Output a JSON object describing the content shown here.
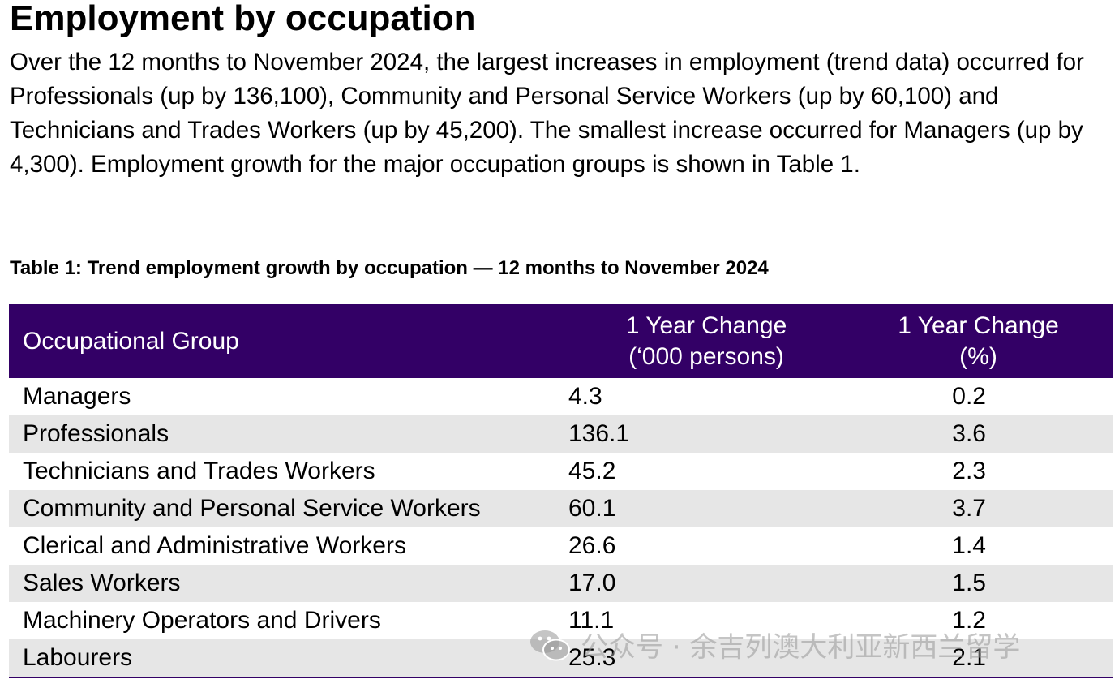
{
  "heading": "Employment by occupation",
  "intro": "Over the 12 months to November 2024, the largest increases in employment (trend data) occurred for Professionals (up by 136,100), Community and Personal Service Workers (up by 60,100) and Technicians and Trades Workers (up by 45,200). The smallest increase occurred for Managers (up by 4,300). Employment growth for the major occupation groups is shown in Table 1.",
  "table": {
    "caption": "Table 1: Trend employment growth by occupation — 12 months to November 2024",
    "headers": {
      "group": "Occupational Group",
      "change_k_line1": "1 Year Change",
      "change_k_line2": "(‘000 persons)",
      "change_pct_line1": "1 Year Change",
      "change_pct_line2": "(%)"
    },
    "rows": [
      {
        "group": "Managers",
        "change_k": "4.3",
        "change_pct": "0.2"
      },
      {
        "group": "Professionals",
        "change_k": "136.1",
        "change_pct": "3.6"
      },
      {
        "group": "Technicians and Trades Workers",
        "change_k": "45.2",
        "change_pct": "2.3"
      },
      {
        "group": "Community and Personal Service Workers",
        "change_k": "60.1",
        "change_pct": "3.7"
      },
      {
        "group": "Clerical and Administrative Workers",
        "change_k": "26.6",
        "change_pct": "1.4"
      },
      {
        "group": "Sales Workers",
        "change_k": "17.0",
        "change_pct": "1.5"
      },
      {
        "group": "Machinery Operators and Drivers",
        "change_k": "11.1",
        "change_pct": "1.2"
      },
      {
        "group": "Labourers",
        "change_k": "25.3",
        "change_pct": "2.1"
      }
    ]
  },
  "colors": {
    "header_bg": "#330066",
    "stripe": "#e6e6e6"
  },
  "watermark": {
    "icon": "wechat-icon",
    "text": "公众号 · 余吉列澳大利亚新西兰留学"
  }
}
